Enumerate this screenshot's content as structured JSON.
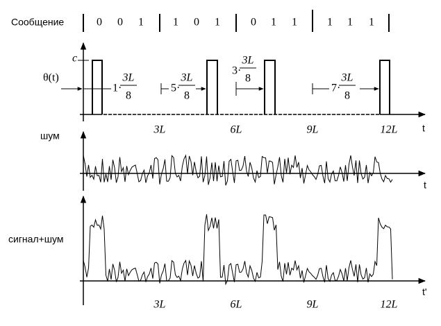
{
  "message": {
    "label": "Сообщение",
    "groups": [
      [
        "0",
        "0",
        "1"
      ],
      [
        "1",
        "0",
        "1"
      ],
      [
        "0",
        "1",
        "1"
      ],
      [
        "1",
        "1",
        "1"
      ]
    ]
  },
  "panel1": {
    "y_label": "c",
    "signal_label": "θ(t)",
    "x_label": "t",
    "x_ticks": [
      "3L",
      "6L",
      "9L",
      "12L"
    ],
    "delays": [
      {
        "factor": "1·",
        "num": "3L",
        "den": "8"
      },
      {
        "factor": "5·",
        "num": "3L",
        "den": "8"
      },
      {
        "factor": "3·",
        "num": "3L",
        "den": "8"
      },
      {
        "factor": "7·",
        "num": "3L",
        "den": "8"
      }
    ]
  },
  "panel2": {
    "label": "шум",
    "x_label": "t"
  },
  "panel3": {
    "label": "сигнал+шум",
    "x_label": "t'",
    "x_ticks": [
      "3L",
      "6L",
      "9L",
      "12L"
    ]
  }
}
